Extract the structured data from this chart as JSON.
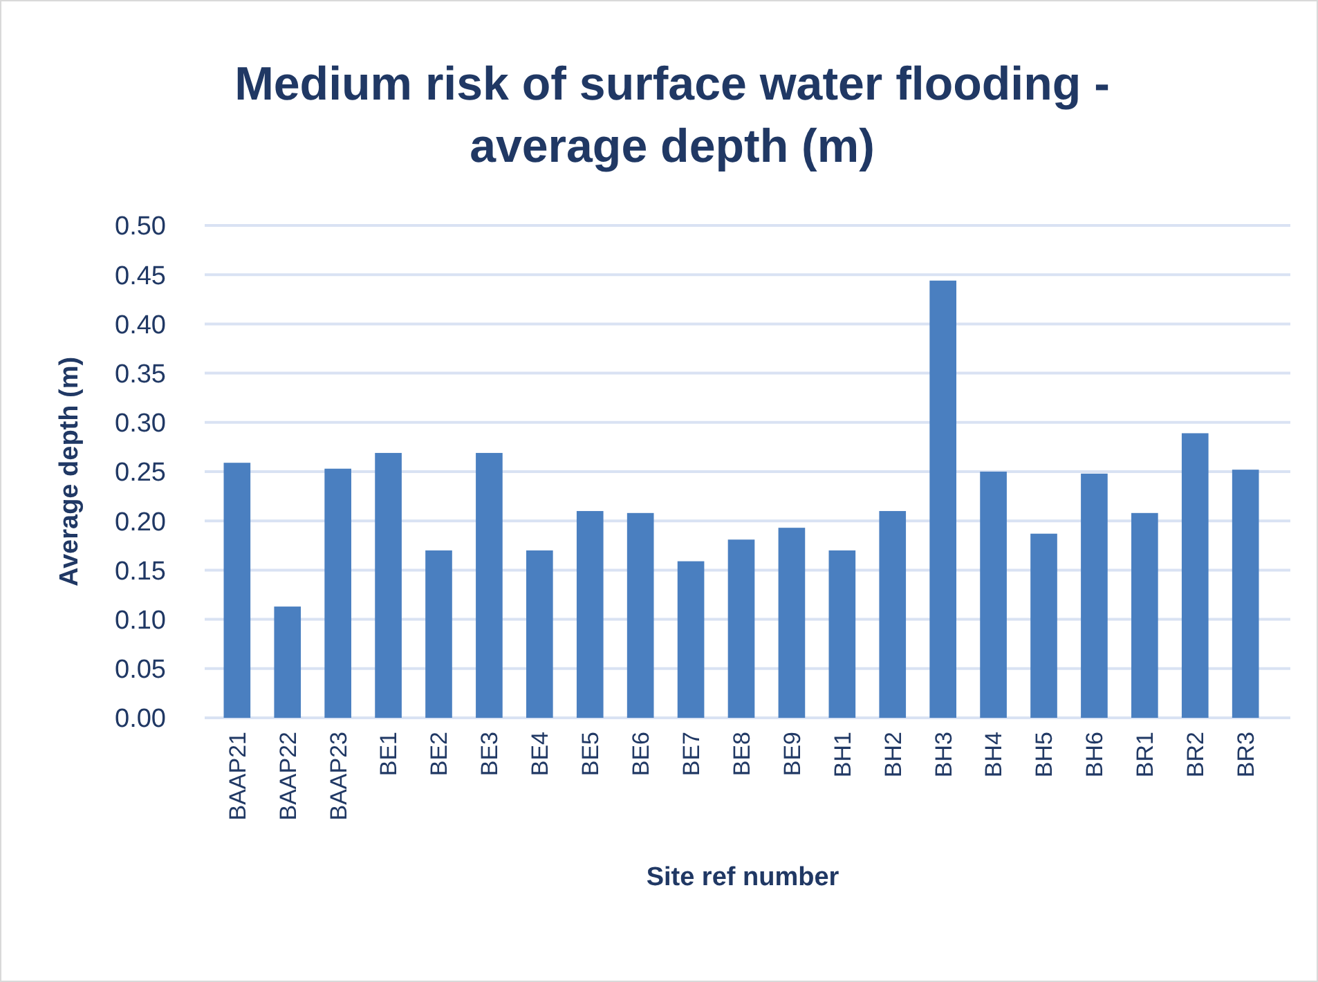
{
  "chart_data": {
    "type": "bar",
    "title": "Medium risk of surface water flooding - average depth (m)",
    "xlabel": "Site ref number",
    "ylabel": "Average depth (m)",
    "categories": [
      "BAAP21",
      "BAAP22",
      "BAAP23",
      "BE1",
      "BE2",
      "BE3",
      "BE4",
      "BE5",
      "BE6",
      "BE7",
      "BE8",
      "BE9",
      "BH1",
      "BH2",
      "BH3",
      "BH4",
      "BH5",
      "BH6",
      "BR1",
      "BR2",
      "BR3"
    ],
    "values": [
      0.259,
      0.113,
      0.253,
      0.269,
      0.17,
      0.269,
      0.17,
      0.21,
      0.208,
      0.159,
      0.181,
      0.193,
      0.17,
      0.21,
      0.444,
      0.25,
      0.187,
      0.248,
      0.208,
      0.289,
      0.252
    ],
    "color": "#4a7fc0",
    "ylim": [
      0,
      0.5
    ],
    "yticks": [
      {
        "value": 0,
        "label": "0.00"
      },
      {
        "value": 0.05,
        "label": "0.05"
      },
      {
        "value": 0.1,
        "label": "0.10"
      },
      {
        "value": 0.15,
        "label": "0.15"
      },
      {
        "value": 0.2,
        "label": "0.20"
      },
      {
        "value": 0.25,
        "label": "0.25"
      },
      {
        "value": 0.3,
        "label": "0.30"
      },
      {
        "value": 0.35,
        "label": "0.35"
      },
      {
        "value": 0.4,
        "label": "0.40"
      },
      {
        "value": 0.45,
        "label": "0.45"
      },
      {
        "value": 0.5,
        "label": "0.50"
      }
    ],
    "grid": "y"
  }
}
